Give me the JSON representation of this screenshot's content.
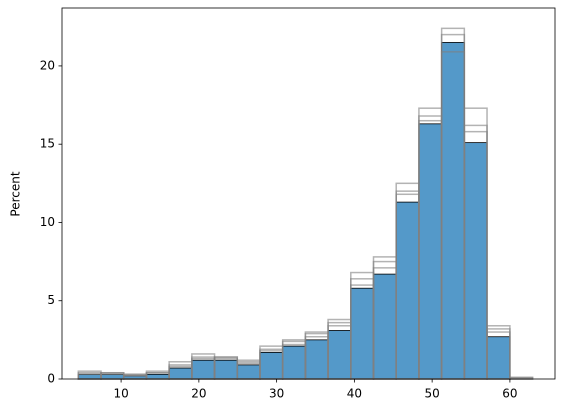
{
  "chart_data": {
    "type": "histogram",
    "y_label": "Percent",
    "bins": [
      4.5,
      7.42,
      10.34,
      13.26,
      16.18,
      19.1,
      22.02,
      24.94,
      27.86,
      30.78,
      33.7,
      36.62,
      39.54,
      42.46,
      45.38,
      48.3,
      51.22,
      54.14,
      57.06,
      60
    ],
    "values": [
      0.3,
      0.3,
      0.2,
      0.3,
      0.7,
      1.2,
      1.2,
      0.9,
      1.7,
      2.1,
      2.5,
      3.1,
      5.8,
      6.7,
      11.3,
      16.3,
      21.5,
      15.1,
      2.7
    ],
    "color": "#5499c9",
    "outline_bins": [
      4.5,
      7.42,
      10.34,
      13.26,
      16.18,
      19.1,
      22.02,
      24.94,
      27.86,
      30.78,
      33.7,
      36.62,
      39.54,
      42.46,
      45.38,
      48.3,
      51.22,
      54.14,
      57.06,
      60,
      62.92
    ],
    "outline_color": "#808080",
    "outlines": [
      {
        "values": [
          0.5,
          0.4,
          0.3,
          0.5,
          1.1,
          1.6,
          1.4,
          1.2,
          2.1,
          2.5,
          3.0,
          3.8,
          6.8,
          7.8,
          12.5,
          17.3,
          22.4,
          16.2,
          3.4,
          0.1
        ]
      },
      {
        "values": [
          0.4,
          0.4,
          0.3,
          0.4,
          0.9,
          1.4,
          1.4,
          1.1,
          1.9,
          2.4,
          2.9,
          3.6,
          6.4,
          7.5,
          12.0,
          16.8,
          22.0,
          17.3,
          3.2,
          0.1
        ]
      },
      {
        "values": [
          0.3,
          0.3,
          0.2,
          0.4,
          0.8,
          1.3,
          1.3,
          1.0,
          1.8,
          2.2,
          2.7,
          3.4,
          6.0,
          7.1,
          11.8,
          16.5,
          20.9,
          15.8,
          3.0,
          0
        ]
      }
    ],
    "xlim": [
      2.4,
      65.8
    ],
    "xticks": [
      10,
      20,
      30,
      40,
      50,
      60
    ],
    "ylim": [
      0,
      23.7
    ],
    "yticks": [
      0,
      5,
      10,
      15,
      20
    ]
  }
}
